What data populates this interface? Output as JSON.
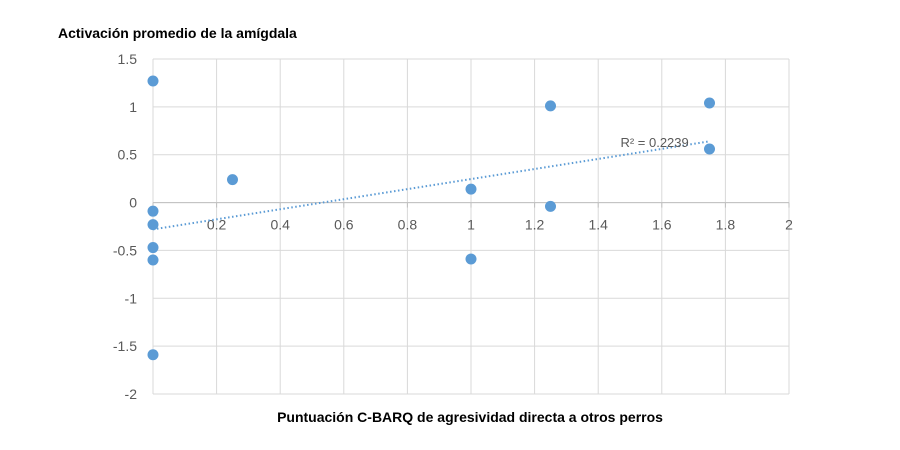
{
  "chart_data": {
    "type": "scatter",
    "title": "",
    "ylabel": "Activación promedio de la amígdala",
    "xlabel": "Puntuación C-BARQ de agresividad directa a otros perros",
    "xlim": [
      0,
      2
    ],
    "ylim": [
      -2,
      1.5
    ],
    "xticks": [
      0,
      0.2,
      0.4,
      0.6,
      0.8,
      1,
      1.2,
      1.4,
      1.6,
      1.8,
      2
    ],
    "xtick_labels": [
      "0",
      "0.2",
      "0.4",
      "0.6",
      "0.8",
      "1",
      "1.2",
      "1.4",
      "1.6",
      "1.8",
      "2"
    ],
    "yticks": [
      1.5,
      1,
      0.5,
      0,
      -0.5,
      -1,
      -1.5,
      -2
    ],
    "ytick_labels": [
      "1.5",
      "1",
      "0.5",
      "0",
      "-0.5",
      "-1",
      "-1.5",
      "-2"
    ],
    "grid": true,
    "series": [
      {
        "x": [
          0,
          0,
          0,
          0,
          0,
          0,
          0.25,
          1,
          1,
          1.25,
          1.25,
          1.75,
          1.75
        ],
        "y": [
          1.27,
          -0.09,
          -0.23,
          -0.47,
          -0.6,
          -1.59,
          0.24,
          0.14,
          -0.59,
          1.01,
          -0.04,
          1.04,
          0.56
        ],
        "color": "#5B9BD5"
      }
    ],
    "trendline": {
      "type": "linear",
      "x": [
        0,
        1.75
      ],
      "y": [
        -0.28,
        0.64
      ],
      "color": "#5B9BD5",
      "style": "dotted",
      "label": "R² = 0.2239"
    }
  }
}
